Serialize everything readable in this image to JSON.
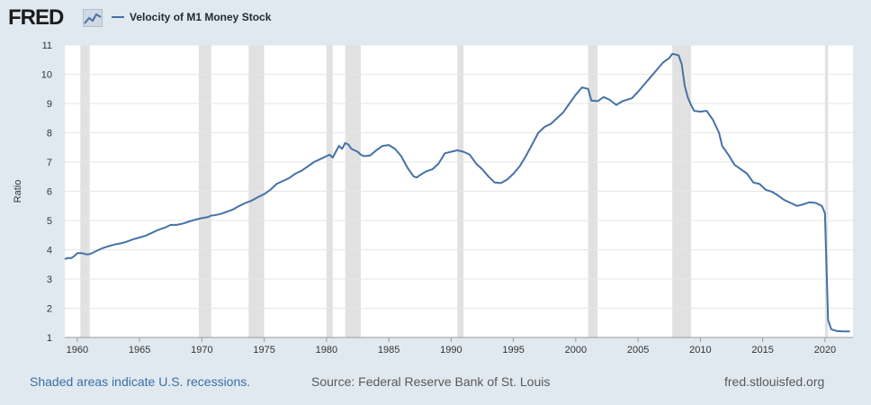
{
  "header": {
    "logo": "FRED",
    "legend_label": "Velocity of M1 Money Stock"
  },
  "footer": {
    "recessions_note": "Shaded areas indicate U.S. recessions.",
    "source": "Source: Federal Reserve Bank of St. Louis",
    "site": "fred.stlouisfed.org"
  },
  "colors": {
    "line": "#4572a7",
    "recession": "#e1e1e1",
    "grid": "#e6e6e6",
    "background": "#e1e9f0"
  },
  "chart_data": {
    "type": "line",
    "title": "",
    "xlabel": "",
    "ylabel": "Ratio",
    "xlim": [
      1959.0,
      2022.25
    ],
    "ylim": [
      1,
      11
    ],
    "x_ticks": [
      "1960",
      "1965",
      "1970",
      "1975",
      "1980",
      "1985",
      "1990",
      "1995",
      "2000",
      "2005",
      "2010",
      "2015",
      "2020"
    ],
    "y_ticks": [
      "1",
      "2",
      "3",
      "4",
      "5",
      "6",
      "7",
      "8",
      "9",
      "10",
      "11"
    ],
    "grid": true,
    "legend": "top-left",
    "recessions": [
      [
        1960.25,
        1961.0
      ],
      [
        1969.75,
        1970.75
      ],
      [
        1973.75,
        1975.0
      ],
      [
        1980.0,
        1980.5
      ],
      [
        1981.5,
        1982.75
      ],
      [
        1990.5,
        1991.0
      ],
      [
        2001.0,
        2001.75
      ],
      [
        2007.75,
        2009.25
      ],
      [
        2020.0,
        2020.25
      ]
    ],
    "series": [
      {
        "name": "Velocity of M1 Money Stock",
        "points": [
          [
            1959.0,
            3.68
          ],
          [
            1959.25,
            3.72
          ],
          [
            1959.5,
            3.71
          ],
          [
            1959.75,
            3.78
          ],
          [
            1960.0,
            3.88
          ],
          [
            1960.25,
            3.89
          ],
          [
            1960.5,
            3.87
          ],
          [
            1960.75,
            3.84
          ],
          [
            1961.0,
            3.85
          ],
          [
            1961.5,
            3.95
          ],
          [
            1962.0,
            4.05
          ],
          [
            1962.5,
            4.12
          ],
          [
            1963.0,
            4.18
          ],
          [
            1963.5,
            4.22
          ],
          [
            1964.0,
            4.28
          ],
          [
            1964.5,
            4.36
          ],
          [
            1965.0,
            4.42
          ],
          [
            1965.5,
            4.48
          ],
          [
            1966.0,
            4.58
          ],
          [
            1966.5,
            4.68
          ],
          [
            1967.0,
            4.75
          ],
          [
            1967.5,
            4.85
          ],
          [
            1968.0,
            4.85
          ],
          [
            1968.5,
            4.9
          ],
          [
            1969.0,
            4.97
          ],
          [
            1969.5,
            5.03
          ],
          [
            1970.0,
            5.08
          ],
          [
            1970.5,
            5.12
          ],
          [
            1970.75,
            5.17
          ],
          [
            1971.0,
            5.18
          ],
          [
            1971.5,
            5.22
          ],
          [
            1972.0,
            5.3
          ],
          [
            1972.5,
            5.38
          ],
          [
            1973.0,
            5.5
          ],
          [
            1973.5,
            5.6
          ],
          [
            1974.0,
            5.68
          ],
          [
            1974.5,
            5.8
          ],
          [
            1975.0,
            5.9
          ],
          [
            1975.5,
            6.05
          ],
          [
            1976.0,
            6.25
          ],
          [
            1976.5,
            6.35
          ],
          [
            1977.0,
            6.45
          ],
          [
            1977.5,
            6.6
          ],
          [
            1978.0,
            6.7
          ],
          [
            1978.5,
            6.85
          ],
          [
            1979.0,
            7.0
          ],
          [
            1979.5,
            7.1
          ],
          [
            1980.0,
            7.2
          ],
          [
            1980.25,
            7.25
          ],
          [
            1980.5,
            7.15
          ],
          [
            1980.75,
            7.35
          ],
          [
            1981.0,
            7.55
          ],
          [
            1981.25,
            7.45
          ],
          [
            1981.5,
            7.65
          ],
          [
            1981.75,
            7.6
          ],
          [
            1982.0,
            7.45
          ],
          [
            1982.5,
            7.35
          ],
          [
            1982.75,
            7.25
          ],
          [
            1983.0,
            7.2
          ],
          [
            1983.5,
            7.22
          ],
          [
            1984.0,
            7.4
          ],
          [
            1984.5,
            7.55
          ],
          [
            1985.0,
            7.58
          ],
          [
            1985.5,
            7.45
          ],
          [
            1986.0,
            7.2
          ],
          [
            1986.5,
            6.8
          ],
          [
            1987.0,
            6.5
          ],
          [
            1987.25,
            6.47
          ],
          [
            1987.5,
            6.55
          ],
          [
            1988.0,
            6.68
          ],
          [
            1988.5,
            6.75
          ],
          [
            1989.0,
            6.95
          ],
          [
            1989.5,
            7.3
          ],
          [
            1990.0,
            7.35
          ],
          [
            1990.5,
            7.4
          ],
          [
            1991.0,
            7.35
          ],
          [
            1991.5,
            7.25
          ],
          [
            1992.0,
            6.95
          ],
          [
            1992.5,
            6.75
          ],
          [
            1993.0,
            6.5
          ],
          [
            1993.5,
            6.3
          ],
          [
            1994.0,
            6.28
          ],
          [
            1994.5,
            6.4
          ],
          [
            1995.0,
            6.6
          ],
          [
            1995.5,
            6.85
          ],
          [
            1996.0,
            7.2
          ],
          [
            1996.5,
            7.6
          ],
          [
            1997.0,
            8.0
          ],
          [
            1997.5,
            8.2
          ],
          [
            1998.0,
            8.3
          ],
          [
            1998.5,
            8.5
          ],
          [
            1999.0,
            8.7
          ],
          [
            1999.5,
            9.0
          ],
          [
            2000.0,
            9.3
          ],
          [
            2000.5,
            9.55
          ],
          [
            2001.0,
            9.5
          ],
          [
            2001.25,
            9.1
          ],
          [
            2001.75,
            9.08
          ],
          [
            2002.25,
            9.22
          ],
          [
            2002.75,
            9.12
          ],
          [
            2003.25,
            8.95
          ],
          [
            2003.75,
            9.08
          ],
          [
            2004.5,
            9.18
          ],
          [
            2005.0,
            9.4
          ],
          [
            2005.5,
            9.65
          ],
          [
            2006.0,
            9.9
          ],
          [
            2006.5,
            10.15
          ],
          [
            2007.0,
            10.4
          ],
          [
            2007.5,
            10.55
          ],
          [
            2007.75,
            10.7
          ],
          [
            2008.25,
            10.65
          ],
          [
            2008.5,
            10.35
          ],
          [
            2008.75,
            9.6
          ],
          [
            2009.0,
            9.2
          ],
          [
            2009.25,
            8.95
          ],
          [
            2009.5,
            8.75
          ],
          [
            2010.0,
            8.72
          ],
          [
            2010.5,
            8.75
          ],
          [
            2011.0,
            8.45
          ],
          [
            2011.5,
            8.0
          ],
          [
            2011.75,
            7.55
          ],
          [
            2012.25,
            7.25
          ],
          [
            2012.75,
            6.9
          ],
          [
            2013.25,
            6.75
          ],
          [
            2013.75,
            6.6
          ],
          [
            2014.25,
            6.3
          ],
          [
            2014.75,
            6.25
          ],
          [
            2015.25,
            6.05
          ],
          [
            2015.75,
            5.98
          ],
          [
            2016.25,
            5.85
          ],
          [
            2016.75,
            5.7
          ],
          [
            2017.25,
            5.6
          ],
          [
            2017.75,
            5.5
          ],
          [
            2018.25,
            5.55
          ],
          [
            2018.75,
            5.62
          ],
          [
            2019.25,
            5.6
          ],
          [
            2019.75,
            5.5
          ],
          [
            2020.0,
            5.25
          ],
          [
            2020.25,
            1.6
          ],
          [
            2020.5,
            1.28
          ],
          [
            2020.75,
            1.25
          ],
          [
            2021.0,
            1.22
          ],
          [
            2021.5,
            1.21
          ],
          [
            2022.0,
            1.21
          ]
        ]
      }
    ]
  }
}
